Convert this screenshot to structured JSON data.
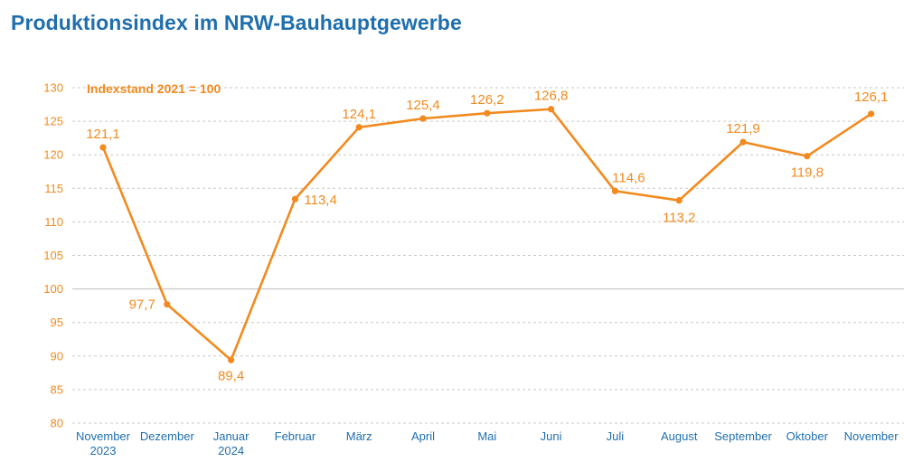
{
  "title": "Produktionsindex im NRW-Bauhauptgewerbe",
  "colors": {
    "title": "#1f6fae",
    "series": "#f28a1f",
    "axis_text_y": "#f28a1f",
    "axis_text_x": "#1f6fae",
    "grid": "#c9c9c9"
  },
  "chart_data": {
    "type": "line",
    "title": "Produktionsindex im NRW-Bauhauptgewerbe",
    "annotation": "Indexstand 2021 = 100",
    "categories": [
      [
        "November",
        "2023"
      ],
      [
        "Dezember"
      ],
      [
        "Januar",
        "2024"
      ],
      [
        "Februar"
      ],
      [
        "März"
      ],
      [
        "April"
      ],
      [
        "Mai"
      ],
      [
        "Juni"
      ],
      [
        "Juli"
      ],
      [
        "August"
      ],
      [
        "September"
      ],
      [
        "Oktober"
      ],
      [
        "November"
      ]
    ],
    "values": [
      121.1,
      97.7,
      89.4,
      113.4,
      124.1,
      125.4,
      126.2,
      126.8,
      114.6,
      113.2,
      121.9,
      119.8,
      126.1
    ],
    "data_labels": [
      "121,1",
      "97,7",
      "89,4",
      "113,4",
      "124,1",
      "125,4",
      "126,2",
      "126,8",
      "114,6",
      "113,2",
      "121,9",
      "119,8",
      "126,1"
    ],
    "yticks": [
      80,
      85,
      90,
      95,
      100,
      105,
      110,
      115,
      120,
      125,
      130
    ],
    "ylim": [
      80,
      130
    ],
    "reference_line": 100,
    "grid": true,
    "xlabel": "",
    "ylabel": ""
  }
}
